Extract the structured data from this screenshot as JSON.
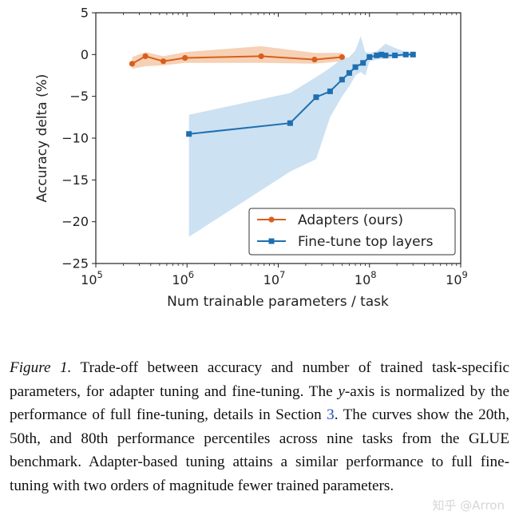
{
  "chart_data": {
    "type": "line",
    "xscale": "log",
    "xlim": [
      100000,
      1000000000
    ],
    "ylim": [
      -25,
      5
    ],
    "xlabel": "Num trainable parameters / task",
    "ylabel": "Accuracy delta (%)",
    "x_tick_labels": [
      {
        "base": "10",
        "exp": "5",
        "value": 100000
      },
      {
        "base": "10",
        "exp": "6",
        "value": 1000000
      },
      {
        "base": "10",
        "exp": "7",
        "value": 10000000
      },
      {
        "base": "10",
        "exp": "8",
        "value": 100000000
      },
      {
        "base": "10",
        "exp": "9",
        "value": 1000000000
      }
    ],
    "y_tick_labels": [
      {
        "label": "5",
        "value": 5
      },
      {
        "label": "0",
        "value": 0
      },
      {
        "label": "−5",
        "value": -5
      },
      {
        "label": "−10",
        "value": -10
      },
      {
        "label": "−15",
        "value": -15
      },
      {
        "label": "−20",
        "value": -20
      },
      {
        "label": "−25",
        "value": -25
      }
    ],
    "legend_position": "lower-right",
    "series": [
      {
        "name": "Adapters (ours)",
        "color": "#d95f1c",
        "band_color": "#f4c9a8",
        "marker": "circle",
        "x": [
          250000,
          350000,
          550000,
          950000,
          6500000,
          25000000,
          50000000
        ],
        "y": [
          -1.1,
          -0.2,
          -0.8,
          -0.4,
          -0.2,
          -0.6,
          -0.3
        ],
        "band_x": [
          250000,
          350000,
          550000,
          950000,
          6500000,
          25000000,
          50000000
        ],
        "band_upper": [
          -0.3,
          0.3,
          -0.2,
          0.3,
          1.0,
          0.2,
          0.2
        ],
        "band_lower": [
          -1.7,
          -1.4,
          -1.3,
          -1.0,
          -1.0,
          -1.1,
          -0.8
        ]
      },
      {
        "name": "Fine-tune top layers",
        "color": "#1f6fb0",
        "band_color": "#c3dcf0",
        "marker": "square",
        "x": [
          1050000,
          13500000,
          26000000,
          37000000,
          50000000,
          60000000,
          70000000,
          85000000,
          100000000,
          120000000,
          135000000,
          150000000,
          190000000,
          250000000,
          300000000
        ],
        "y": [
          -9.5,
          -8.2,
          -5.1,
          -4.4,
          -3.0,
          -2.2,
          -1.5,
          -1.0,
          -0.3,
          -0.1,
          0.0,
          -0.1,
          -0.1,
          0.0,
          0.0
        ],
        "band_x": [
          1050000,
          13500000,
          26000000,
          37000000,
          50000000,
          60000000,
          70000000,
          80000000,
          90000000,
          100000000,
          120000000,
          150000000,
          190000000,
          250000000,
          300000000
        ],
        "band_upper": [
          -7.2,
          -4.6,
          -2.7,
          -1.6,
          -0.5,
          -0.3,
          0.5,
          2.2,
          0.3,
          0.2,
          0.4,
          1.3,
          0.8,
          0.3,
          0.2
        ],
        "band_lower": [
          -21.8,
          -14.0,
          -12.5,
          -7.5,
          -5.0,
          -3.8,
          -2.5,
          -2.1,
          -2.5,
          -0.8,
          -0.6,
          -0.5,
          -0.4,
          -0.2,
          -0.2
        ]
      }
    ]
  },
  "caption": {
    "figure_label": "Figure 1.",
    "text_1": " Trade-off between accuracy and number of trained task-specific parameters, for adapter tuning and fine-tuning. The ",
    "y_var": "y",
    "text_2": "-axis is normalized by the performance of full fine-tuning, details in Section ",
    "section_ref": "3",
    "text_3": ". The curves show the 20th, 50th, and 80th performance percentiles across nine tasks from the GLUE benchmark. Adapter-based tuning attains a similar performance to full fine-tuning with two orders of magnitude fewer trained parameters."
  },
  "watermark": "知乎 @Arron"
}
